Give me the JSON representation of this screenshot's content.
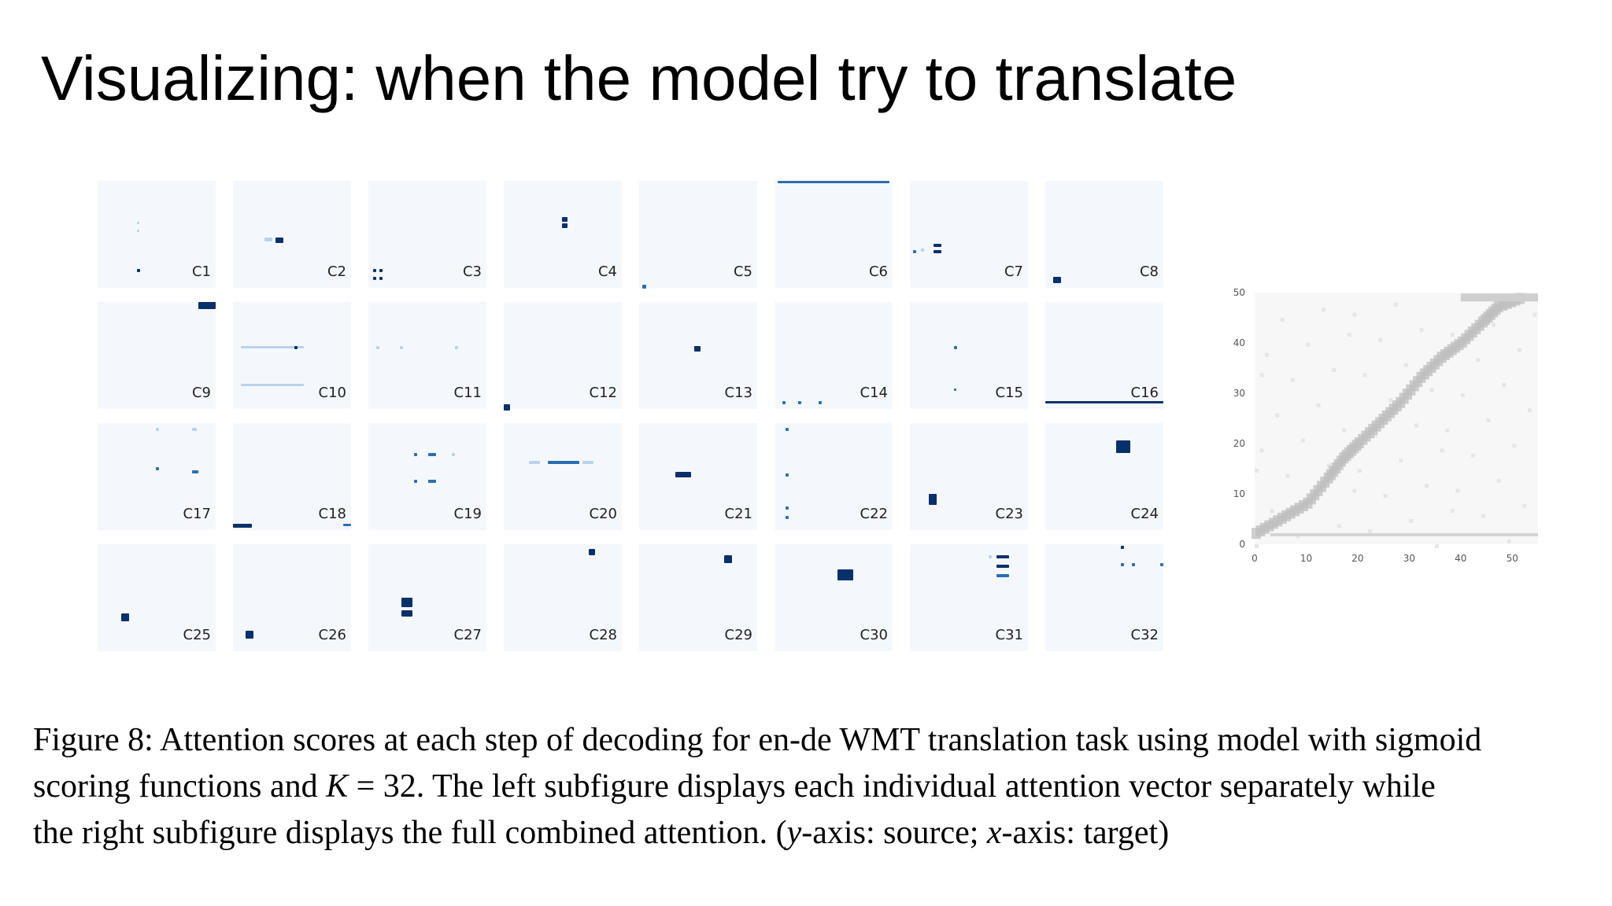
{
  "slide": {
    "title": "Visualizing: when the model try to translate"
  },
  "figure": {
    "panel_labels": [
      "C1",
      "C2",
      "C3",
      "C4",
      "C5",
      "C6",
      "C7",
      "C8",
      "C9",
      "C10",
      "C11",
      "C12",
      "C13",
      "C14",
      "C15",
      "C16",
      "C17",
      "C18",
      "C19",
      "C20",
      "C21",
      "C22",
      "C23",
      "C24",
      "C25",
      "C26",
      "C27",
      "C28",
      "C29",
      "C30",
      "C31",
      "C32"
    ],
    "colors": {
      "panel_bg": "#f4f8fd",
      "attention_strong": "#08306b",
      "attention_mid": "#2c6eb3",
      "attention_weak": "#b9d2ec",
      "combined_bg": "#f7f7f7",
      "combined_diag": "#bdbdbd"
    }
  },
  "chart_data": {
    "type": "heatmap",
    "x_ticks": [
      "0",
      "10",
      "20",
      "30",
      "40",
      "50"
    ],
    "y_ticks": [
      "0",
      "10",
      "20",
      "30",
      "40",
      "50"
    ],
    "xlim": [
      0,
      55
    ],
    "ylim": [
      0,
      50
    ],
    "diagonal_path": [
      [
        0,
        2
      ],
      [
        5,
        5
      ],
      [
        10,
        8
      ],
      [
        14,
        13
      ],
      [
        17,
        17
      ],
      [
        20,
        20
      ],
      [
        24,
        24
      ],
      [
        28,
        28
      ],
      [
        32,
        33
      ],
      [
        36,
        37
      ],
      [
        40,
        40
      ],
      [
        44,
        44
      ],
      [
        47,
        47
      ],
      [
        52,
        49
      ]
    ]
  },
  "caption": {
    "line1": "Figure 8: Attention scores at each step of decoding for en-de WMT translation task using model with sigmoid",
    "line2_a": "scoring functions and ",
    "line2_k": "K",
    "line2_b": " = 32.  The left subfigure displays each individual attention vector separately while",
    "line3_a": "the right subfigure displays the full combined attention. (",
    "line3_y": "y",
    "line3_b": "-axis: source; ",
    "line3_x": "x",
    "line3_c": "-axis: target)"
  }
}
